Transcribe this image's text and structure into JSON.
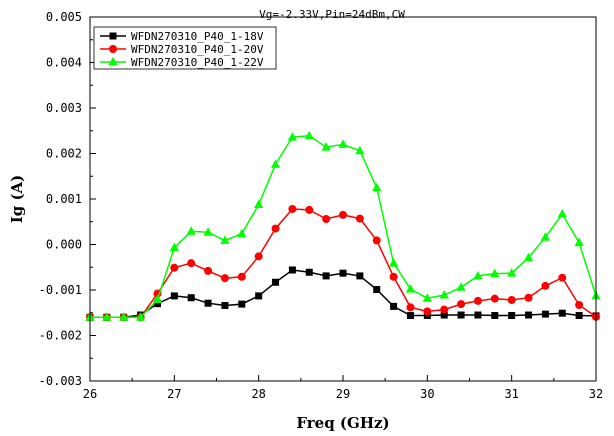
{
  "chart_data": {
    "type": "line",
    "title": "Vg=-2.33V,Pin=24dBm,CW",
    "xlabel": "Freq (GHz)",
    "ylabel": "Ig (A)",
    "xlim": [
      26,
      32
    ],
    "ylim": [
      -0.003,
      0.005
    ],
    "x_ticks": [
      26,
      27,
      28,
      29,
      30,
      31,
      32
    ],
    "x_tick_labels": [
      "26",
      "27",
      "28",
      "29",
      "30",
      "31",
      "32"
    ],
    "y_ticks": [
      -0.003,
      -0.002,
      -0.001,
      0.0,
      0.001,
      0.002,
      0.003,
      0.004,
      0.005
    ],
    "y_tick_labels": [
      "-0.003",
      "-0.002",
      "-0.001",
      "0.000",
      "0.001",
      "0.002",
      "0.003",
      "0.004",
      "0.005"
    ],
    "grid": false,
    "legend_position": "top-left",
    "x": [
      26.0,
      26.2,
      26.4,
      26.6,
      26.8,
      27.0,
      27.2,
      27.4,
      27.6,
      27.8,
      28.0,
      28.2,
      28.4,
      28.6,
      28.8,
      29.0,
      29.2,
      29.4,
      29.6,
      29.8,
      30.0,
      30.2,
      30.4,
      30.6,
      30.8,
      31.0,
      31.2,
      31.4,
      31.6,
      31.8,
      32.0
    ],
    "series": [
      {
        "name": "WFDN270310_P40_1-18V",
        "color": "#000000",
        "marker": "square",
        "values": [
          -0.0016,
          -0.0016,
          -0.0016,
          -0.00155,
          -0.0013,
          -0.00113,
          -0.00117,
          -0.00129,
          -0.00134,
          -0.00131,
          -0.00113,
          -0.00083,
          -0.00056,
          -0.00061,
          -0.00069,
          -0.00063,
          -0.00069,
          -0.00099,
          -0.00136,
          -0.00156,
          -0.00156,
          -0.00155,
          -0.00155,
          -0.00155,
          -0.00156,
          -0.00156,
          -0.00155,
          -0.00153,
          -0.00151,
          -0.00156,
          -0.00157
        ]
      },
      {
        "name": "WFDN270310_P40_1-20V",
        "color": "#ff0000",
        "marker": "circle",
        "values": [
          -0.0016,
          -0.0016,
          -0.0016,
          -0.0016,
          -0.00108,
          -0.00051,
          -0.00041,
          -0.00058,
          -0.00074,
          -0.00071,
          -0.00026,
          0.00035,
          0.00078,
          0.00076,
          0.00056,
          0.00065,
          0.00057,
          9e-05,
          -0.00071,
          -0.00138,
          -0.00147,
          -0.00143,
          -0.00131,
          -0.00124,
          -0.00119,
          -0.00122,
          -0.00117,
          -0.00091,
          -0.00073,
          -0.00133,
          -0.00159
        ]
      },
      {
        "name": "WFDN270310_P40_1-22V",
        "color": "#00ff00",
        "marker": "triangle",
        "values": [
          -0.0016,
          -0.0016,
          -0.0016,
          -0.0016,
          -0.00121,
          -7e-05,
          0.00029,
          0.00027,
          9e-05,
          0.00024,
          0.00088,
          0.00176,
          0.00236,
          0.00239,
          0.00214,
          0.0022,
          0.00206,
          0.00125,
          -0.00041,
          -0.00098,
          -0.00118,
          -0.00111,
          -0.00094,
          -0.00069,
          -0.00064,
          -0.00063,
          -0.00029,
          0.00016,
          0.00067,
          4e-05,
          -0.00113
        ]
      }
    ]
  }
}
